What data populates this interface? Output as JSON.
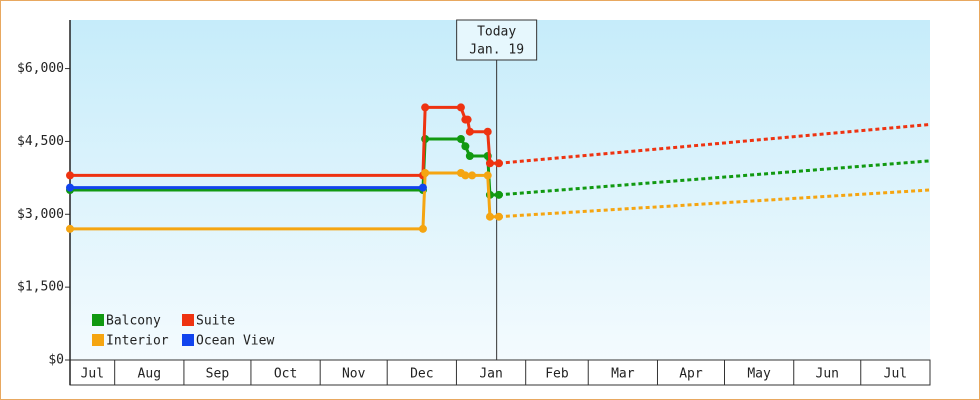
{
  "chart_data": {
    "type": "line",
    "xlim": [
      0,
      385
    ],
    "ylim": [
      0,
      7000
    ],
    "grid": false,
    "legend": "bottom-left",
    "yticks": [
      {
        "value": 0,
        "label": "$0"
      },
      {
        "value": 1500,
        "label": "$1,500"
      },
      {
        "value": 3000,
        "label": "$3,000"
      },
      {
        "value": 4500,
        "label": "$4,500"
      },
      {
        "value": 6000,
        "label": "$6,000"
      }
    ],
    "xticks": [
      {
        "value": 0,
        "label": "Jul"
      },
      {
        "value": 20,
        "label": "Aug"
      },
      {
        "value": 51,
        "label": "Sep"
      },
      {
        "value": 81,
        "label": "Oct"
      },
      {
        "value": 112,
        "label": "Nov"
      },
      {
        "value": 142,
        "label": "Dec"
      },
      {
        "value": 173,
        "label": "Jan"
      },
      {
        "value": 204,
        "label": "Feb"
      },
      {
        "value": 232,
        "label": "Mar"
      },
      {
        "value": 263,
        "label": "Apr"
      },
      {
        "value": 293,
        "label": "May"
      },
      {
        "value": 324,
        "label": "Jun"
      },
      {
        "value": 354,
        "label": "Jul"
      }
    ],
    "today": {
      "x": 191,
      "label": [
        "Today",
        "Jan. 19"
      ]
    },
    "series": [
      {
        "name": "Balcony",
        "color": "#119911",
        "x": [
          0,
          158,
          159,
          175,
          177,
          179,
          187,
          188,
          192
        ],
        "values": [
          3500,
          3500,
          4550,
          4550,
          4400,
          4200,
          4200,
          3400,
          3400
        ],
        "forecast": {
          "x": [
            192,
            385
          ],
          "values": [
            3400,
            4100
          ]
        }
      },
      {
        "name": "Suite",
        "color": "#ee3311",
        "x": [
          0,
          158,
          159,
          175,
          177,
          178,
          179,
          187,
          188,
          192
        ],
        "values": [
          3800,
          3800,
          5200,
          5200,
          4950,
          4950,
          4700,
          4700,
          4050,
          4050
        ],
        "forecast": {
          "x": [
            192,
            385
          ],
          "values": [
            4050,
            4850
          ]
        }
      },
      {
        "name": "Interior",
        "color": "#f5a511",
        "x": [
          0,
          158,
          159,
          175,
          177,
          180,
          187,
          188,
          192
        ],
        "values": [
          2700,
          2700,
          3850,
          3850,
          3800,
          3800,
          3800,
          2950,
          2950
        ],
        "forecast": {
          "x": [
            192,
            385
          ],
          "values": [
            2950,
            3500
          ]
        }
      },
      {
        "name": "Ocean View",
        "color": "#1144ee",
        "x": [
          0,
          158
        ],
        "values": [
          3550,
          3550
        ]
      }
    ]
  }
}
